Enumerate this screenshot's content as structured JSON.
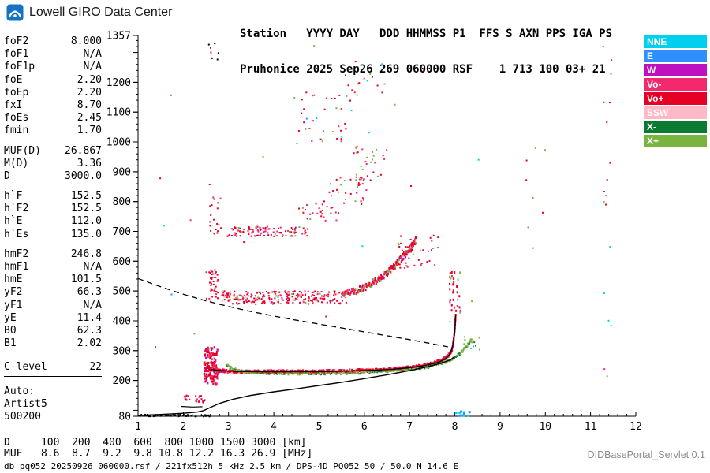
{
  "branding": {
    "title": "Lowell GIRO Data Center"
  },
  "header": {
    "line1": "Station   YYYY DAY   DDD HHMMSS P1  FFS S AXN PPS IGA PS",
    "line2": "Pruhonice 2025 Sep26 269 060000 RSF    1 713 100 03+ 21"
  },
  "params": [
    {
      "type": "param",
      "name": "foF2",
      "value": "8.000"
    },
    {
      "type": "param",
      "name": "foF1",
      "value": "N/A"
    },
    {
      "type": "param",
      "name": "foF1p",
      "value": "N/A"
    },
    {
      "type": "param",
      "name": "foE",
      "value": "2.20"
    },
    {
      "type": "param",
      "name": "foEp",
      "value": "2.20"
    },
    {
      "type": "param",
      "name": "fxI",
      "value": "8.70"
    },
    {
      "type": "param",
      "name": "foEs",
      "value": "2.45"
    },
    {
      "type": "param",
      "name": "fmin",
      "value": "1.70"
    },
    {
      "type": "gap"
    },
    {
      "type": "param",
      "name": "MUF(D)",
      "value": "26.867"
    },
    {
      "type": "param",
      "name": "M(D)",
      "value": "3.36"
    },
    {
      "type": "param",
      "name": "D",
      "value": "3000.0"
    },
    {
      "type": "gap"
    },
    {
      "type": "param",
      "name": "h`F",
      "value": "152.5"
    },
    {
      "type": "param",
      "name": "h`F2",
      "value": "152.5"
    },
    {
      "type": "param",
      "name": "h`E",
      "value": "112.0"
    },
    {
      "type": "param",
      "name": "h`Es",
      "value": "135.0"
    },
    {
      "type": "gap"
    },
    {
      "type": "param",
      "name": "hmF2",
      "value": "246.8"
    },
    {
      "type": "param",
      "name": "hmF1",
      "value": "N/A"
    },
    {
      "type": "param",
      "name": "hmE",
      "value": "101.5"
    },
    {
      "type": "param",
      "name": "yF2",
      "value": "66.3"
    },
    {
      "type": "param",
      "name": "yF1",
      "value": "N/A"
    },
    {
      "type": "param",
      "name": "yE",
      "value": "11.4"
    },
    {
      "type": "param",
      "name": "B0",
      "value": "62.3"
    },
    {
      "type": "param",
      "name": "B1",
      "value": "2.02"
    },
    {
      "type": "gap"
    },
    {
      "type": "rule"
    },
    {
      "type": "param",
      "name": "C-level",
      "value": "22"
    },
    {
      "type": "rule"
    },
    {
      "type": "gap"
    },
    {
      "type": "text",
      "name": "Auto:"
    },
    {
      "type": "text",
      "name": "Artist5"
    },
    {
      "type": "text",
      "name": "500200"
    }
  ],
  "legend": [
    {
      "label": "NNE",
      "color": "#00d0ee"
    },
    {
      "label": "E",
      "color": "#2f8fff"
    },
    {
      "label": "W",
      "color": "#bf10bf"
    },
    {
      "label": "Vo-",
      "color": "#f5286e"
    },
    {
      "label": "Vo+",
      "color": "#e60026"
    },
    {
      "label": "SSW",
      "color": "#ffb9c6"
    },
    {
      "label": "X-",
      "color": "#0b7a33"
    },
    {
      "label": "X+",
      "color": "#78b43e"
    }
  ],
  "muf_table": {
    "row1_label": "D",
    "row2_label": "MUF",
    "distances_km": [
      "100",
      "200",
      "400",
      "600",
      "800",
      "1000",
      "1500",
      "3000"
    ],
    "muf_mhz": [
      "8.6",
      "8.7",
      "9.2",
      "9.8",
      "10.8",
      "12.2",
      "16.3",
      "26.9"
    ],
    "row1_unit": "[km]",
    "row2_unit": "[MHz]"
  },
  "footer": {
    "info": "db pq052 20250926 060000.rsf / 221fx512h 5 kHz 2.5 km / DPS-4D PQ052 50 / 50.0 N 14.6 E",
    "servlet": "DIDBasePortal_Servlet 0.1"
  },
  "chart_data": {
    "type": "scatter",
    "title": "",
    "xlabel": "[MHz]",
    "ylabel": "[km]",
    "xlim": [
      1,
      12
    ],
    "ylim": [
      80,
      1357
    ],
    "x_ticks": [
      1,
      2,
      3,
      4,
      5,
      6,
      7,
      8,
      9,
      10,
      11,
      12
    ],
    "y_ticks": [
      80,
      200,
      300,
      400,
      500,
      600,
      700,
      800,
      900,
      1000,
      1100,
      1200,
      1357
    ],
    "grid": false,
    "legend_position": "right",
    "speckle_seed": 20250926,
    "palette": {
      "nne": "#00d0ee",
      "e": "#2f8fff",
      "w": "#bf10bf",
      "vominus": "#f5286e",
      "voplus": "#e60026",
      "ssw": "#ffb9c6",
      "xminus": "#0b7a33",
      "xplus": "#78b43e",
      "black": "#000000"
    },
    "traces": [
      {
        "name": "f2-ordinary-trace",
        "colors": {
          "voplus": 0.7,
          "vominus": 0.18,
          "w": 0.05,
          "ssw": 0.07
        },
        "density": 110,
        "jitter_km": 5,
        "dot": [
          2,
          3
        ],
        "points": [
          [
            2.48,
            258
          ],
          [
            2.55,
            245
          ],
          [
            2.62,
            238
          ],
          [
            2.75,
            233
          ],
          [
            3.0,
            231
          ],
          [
            3.5,
            229
          ],
          [
            4.0,
            229
          ],
          [
            4.6,
            229
          ],
          [
            5.2,
            230
          ],
          [
            5.8,
            232
          ],
          [
            6.4,
            235
          ],
          [
            6.8,
            239
          ],
          [
            7.1,
            244
          ],
          [
            7.35,
            250
          ],
          [
            7.55,
            258
          ],
          [
            7.72,
            268
          ],
          [
            7.85,
            282
          ],
          [
            7.93,
            300
          ],
          [
            7.97,
            330
          ],
          [
            8.0,
            372
          ],
          [
            8.02,
            422
          ]
        ]
      },
      {
        "name": "f2-extraordinary-trace",
        "colors": {
          "xplus": 0.78,
          "xminus": 0.22
        },
        "density": 48,
        "jitter_km": 5,
        "dot": [
          2,
          2
        ],
        "points": [
          [
            2.95,
            252
          ],
          [
            3.05,
            242
          ],
          [
            3.2,
            234
          ],
          [
            3.45,
            228
          ],
          [
            3.8,
            225
          ],
          [
            4.3,
            224
          ],
          [
            4.9,
            224
          ],
          [
            5.5,
            225
          ],
          [
            6.0,
            227
          ],
          [
            6.5,
            231
          ],
          [
            6.9,
            236
          ],
          [
            7.2,
            241
          ],
          [
            7.5,
            249
          ],
          [
            7.75,
            259
          ],
          [
            7.95,
            272
          ],
          [
            8.1,
            288
          ],
          [
            8.25,
            312
          ],
          [
            8.38,
            340
          ]
        ]
      },
      {
        "name": "second-hop-rising-arc",
        "colors": {
          "voplus": 0.55,
          "vominus": 0.2,
          "xplus": 0.2,
          "w": 0.05
        },
        "density": 65,
        "jitter_km": 11,
        "dot": [
          2,
          3
        ],
        "points": [
          [
            5.5,
            490
          ],
          [
            5.75,
            498
          ],
          [
            6.0,
            512
          ],
          [
            6.2,
            528
          ],
          [
            6.4,
            548
          ],
          [
            6.6,
            575
          ],
          [
            6.8,
            605
          ],
          [
            7.0,
            640
          ],
          [
            7.15,
            672
          ]
        ]
      }
    ],
    "clusters": [
      {
        "name": "es-layer-echoes",
        "f": [
          2.02,
          2.48
        ],
        "h": [
          126,
          150
        ],
        "count": 26,
        "colors": {
          "voplus": 0.8,
          "vominus": 0.2
        },
        "dot": [
          2,
          2
        ]
      },
      {
        "name": "f-onset-spread",
        "f": [
          2.46,
          2.76
        ],
        "h": [
          185,
          312
        ],
        "count": 130,
        "colors": {
          "voplus": 0.66,
          "vominus": 0.22,
          "w": 0.12
        },
        "dot": [
          2,
          3
        ]
      },
      {
        "name": "second-hop-band",
        "f": [
          2.85,
          5.6
        ],
        "h": [
          456,
          500
        ],
        "count": 250,
        "colors": {
          "voplus": 0.6,
          "vominus": 0.18,
          "w": 0.08,
          "xplus": 0.08,
          "ssw": 0.06
        },
        "dot": [
          2,
          2
        ]
      },
      {
        "name": "second-hop-onset-spread",
        "f": [
          2.5,
          2.78
        ],
        "h": [
          462,
          572
        ],
        "count": 38,
        "colors": {
          "voplus": 0.75,
          "vominus": 0.25
        },
        "dot": [
          2,
          2
        ]
      },
      {
        "name": "third-hop-band",
        "f": [
          2.95,
          4.75
        ],
        "h": [
          683,
          716
        ],
        "count": 105,
        "colors": {
          "voplus": 0.6,
          "vominus": 0.2,
          "w": 0.1,
          "xplus": 0.1
        },
        "dot": [
          2,
          2
        ]
      },
      {
        "name": "third-hop-onset-spread",
        "f": [
          2.55,
          2.85
        ],
        "h": [
          690,
          865
        ],
        "count": 20,
        "colors": {
          "voplus": 0.7,
          "vominus": 0.3
        },
        "dot": [
          2,
          2
        ]
      },
      {
        "name": "upper-multiple-cluster",
        "f": [
          6.75,
          7.65
        ],
        "h": [
          575,
          695
        ],
        "count": 36,
        "colors": {
          "voplus": 0.55,
          "xplus": 0.25,
          "vominus": 0.2
        },
        "dot": [
          2,
          2
        ]
      },
      {
        "name": "nose-spread",
        "f": [
          7.88,
          8.14
        ],
        "h": [
          428,
          565
        ],
        "count": 30,
        "colors": {
          "voplus": 0.6,
          "vominus": 0.25,
          "xplus": 0.15
        },
        "dot": [
          2,
          3
        ]
      },
      {
        "name": "x-nose-dots",
        "f": [
          8.18,
          8.55
        ],
        "h": [
          295,
          352
        ],
        "count": 14,
        "colors": {
          "xplus": 0.8,
          "xminus": 0.2
        },
        "dot": [
          2,
          2
        ]
      },
      {
        "name": "multiples-rise-1",
        "f": [
          4.55,
          5.45
        ],
        "h": [
          735,
          805
        ],
        "count": 26,
        "colors": {
          "voplus": 0.5,
          "xplus": 0.3,
          "vominus": 0.2
        },
        "dot": [
          2,
          2
        ]
      },
      {
        "name": "multiples-rise-2",
        "f": [
          5.2,
          6.05
        ],
        "h": [
          790,
          882
        ],
        "count": 30,
        "colors": {
          "voplus": 0.5,
          "xplus": 0.3,
          "vominus": 0.2
        },
        "dot": [
          2,
          2
        ]
      },
      {
        "name": "multiples-rise-3",
        "f": [
          5.75,
          6.5
        ],
        "h": [
          858,
          985
        ],
        "count": 32,
        "colors": {
          "voplus": 0.45,
          "xplus": 0.3,
          "vominus": 0.25
        },
        "dot": [
          2,
          2
        ]
      },
      {
        "name": "high-scatter-low",
        "f": [
          4.55,
          5.75
        ],
        "h": [
          1000,
          1175
        ],
        "count": 34,
        "colors": {
          "voplus": 0.4,
          "xplus": 0.22,
          "vominus": 0.14,
          "e": 0.12,
          "nne": 0.12
        },
        "dot": [
          2,
          2
        ]
      },
      {
        "name": "high-scatter-high",
        "f": [
          5.55,
          6.45
        ],
        "h": [
          1120,
          1278
        ],
        "count": 18,
        "colors": {
          "voplus": 0.4,
          "xplus": 0.25,
          "vominus": 0.2,
          "nne": 0.15
        },
        "dot": [
          2,
          2
        ]
      },
      {
        "name": "top-left-marks",
        "f": [
          2.55,
          2.78
        ],
        "h": [
          1262,
          1335
        ],
        "count": 7,
        "colors": {
          "voplus": 0.5,
          "black": 0.5
        },
        "dot": [
          2,
          2
        ]
      },
      {
        "name": "rfi-column",
        "f": [
          11.28,
          11.47
        ],
        "h": [
          150,
          1345
        ],
        "count": 18,
        "colors": {
          "voplus": 0.3,
          "xplus": 0.25,
          "vominus": 0.15,
          "w": 0.1,
          "nne": 0.1,
          "e": 0.1
        },
        "dot": [
          2,
          2
        ]
      },
      {
        "name": "rfi-9-10",
        "f": [
          9.55,
          10.1
        ],
        "h": [
          640,
          1010
        ],
        "count": 8,
        "colors": {
          "xplus": 0.6,
          "voplus": 0.4
        },
        "dot": [
          2,
          2
        ]
      },
      {
        "name": "baseline-noise",
        "f": [
          1.0,
          2.6
        ],
        "h": [
          79,
          86
        ],
        "count": 50,
        "colors": {
          "black": 1
        },
        "dot": [
          2,
          2
        ]
      },
      {
        "name": "bottom-right-dots",
        "f": [
          7.95,
          8.35
        ],
        "h": [
          80,
          96
        ],
        "count": 10,
        "colors": {
          "e": 0.5,
          "nne": 0.5
        },
        "dot": [
          3,
          3
        ]
      },
      {
        "name": "stray-noise",
        "f": [
          1.3,
          8.6
        ],
        "h": [
          150,
          1330
        ],
        "count": 26,
        "colors": {
          "voplus": 0.3,
          "xplus": 0.2,
          "e": 0.15,
          "nne": 0.1,
          "w": 0.15,
          "vominus": 0.1
        },
        "dot": [
          2,
          2
        ]
      }
    ],
    "curves": [
      {
        "name": "artist-f2-trace",
        "style": "solid",
        "color": "black",
        "width": 1.3,
        "points": [
          [
            2.6,
            237
          ],
          [
            3.0,
            231
          ],
          [
            3.6,
            229
          ],
          [
            4.4,
            229
          ],
          [
            5.2,
            230
          ],
          [
            6.0,
            233
          ],
          [
            6.6,
            237
          ],
          [
            7.0,
            243
          ],
          [
            7.3,
            249
          ],
          [
            7.6,
            259
          ],
          [
            7.78,
            271
          ],
          [
            7.9,
            290
          ],
          [
            7.96,
            320
          ],
          [
            8.0,
            365
          ],
          [
            8.02,
            418
          ]
        ]
      },
      {
        "name": "true-height-profile",
        "style": "solid",
        "color": "black",
        "width": 1.4,
        "points": [
          [
            1.0,
            83
          ],
          [
            1.5,
            86
          ],
          [
            2.0,
            90
          ],
          [
            2.3,
            94
          ],
          [
            2.45,
            99
          ],
          [
            2.6,
            110
          ],
          [
            2.8,
            123
          ],
          [
            3.1,
            137
          ],
          [
            3.5,
            150
          ],
          [
            4.0,
            162
          ],
          [
            4.5,
            172
          ],
          [
            5.0,
            183
          ],
          [
            5.5,
            194
          ],
          [
            6.0,
            206
          ],
          [
            6.5,
            219
          ],
          [
            7.0,
            233
          ],
          [
            7.4,
            246
          ],
          [
            7.7,
            258
          ],
          [
            7.9,
            269
          ],
          [
            8.0,
            280
          ]
        ]
      },
      {
        "name": "e-layer-trace",
        "style": "solid",
        "color": "black",
        "width": 1.2,
        "points": [
          [
            1.95,
            113
          ],
          [
            2.2,
            111
          ],
          [
            2.42,
            112
          ]
        ]
      },
      {
        "name": "muf3000-transmission-curve",
        "style": "dashed",
        "color": "black",
        "width": 1.3,
        "points": [
          [
            1.0,
            542
          ],
          [
            1.5,
            514
          ],
          [
            2.0,
            489
          ],
          [
            2.5,
            467
          ],
          [
            3.0,
            448
          ],
          [
            3.5,
            431
          ],
          [
            4.0,
            416
          ],
          [
            4.5,
            402
          ],
          [
            5.0,
            389
          ],
          [
            5.5,
            376
          ],
          [
            6.0,
            363
          ],
          [
            6.5,
            350
          ],
          [
            7.0,
            337
          ],
          [
            7.5,
            323
          ],
          [
            7.9,
            311
          ]
        ]
      }
    ]
  }
}
